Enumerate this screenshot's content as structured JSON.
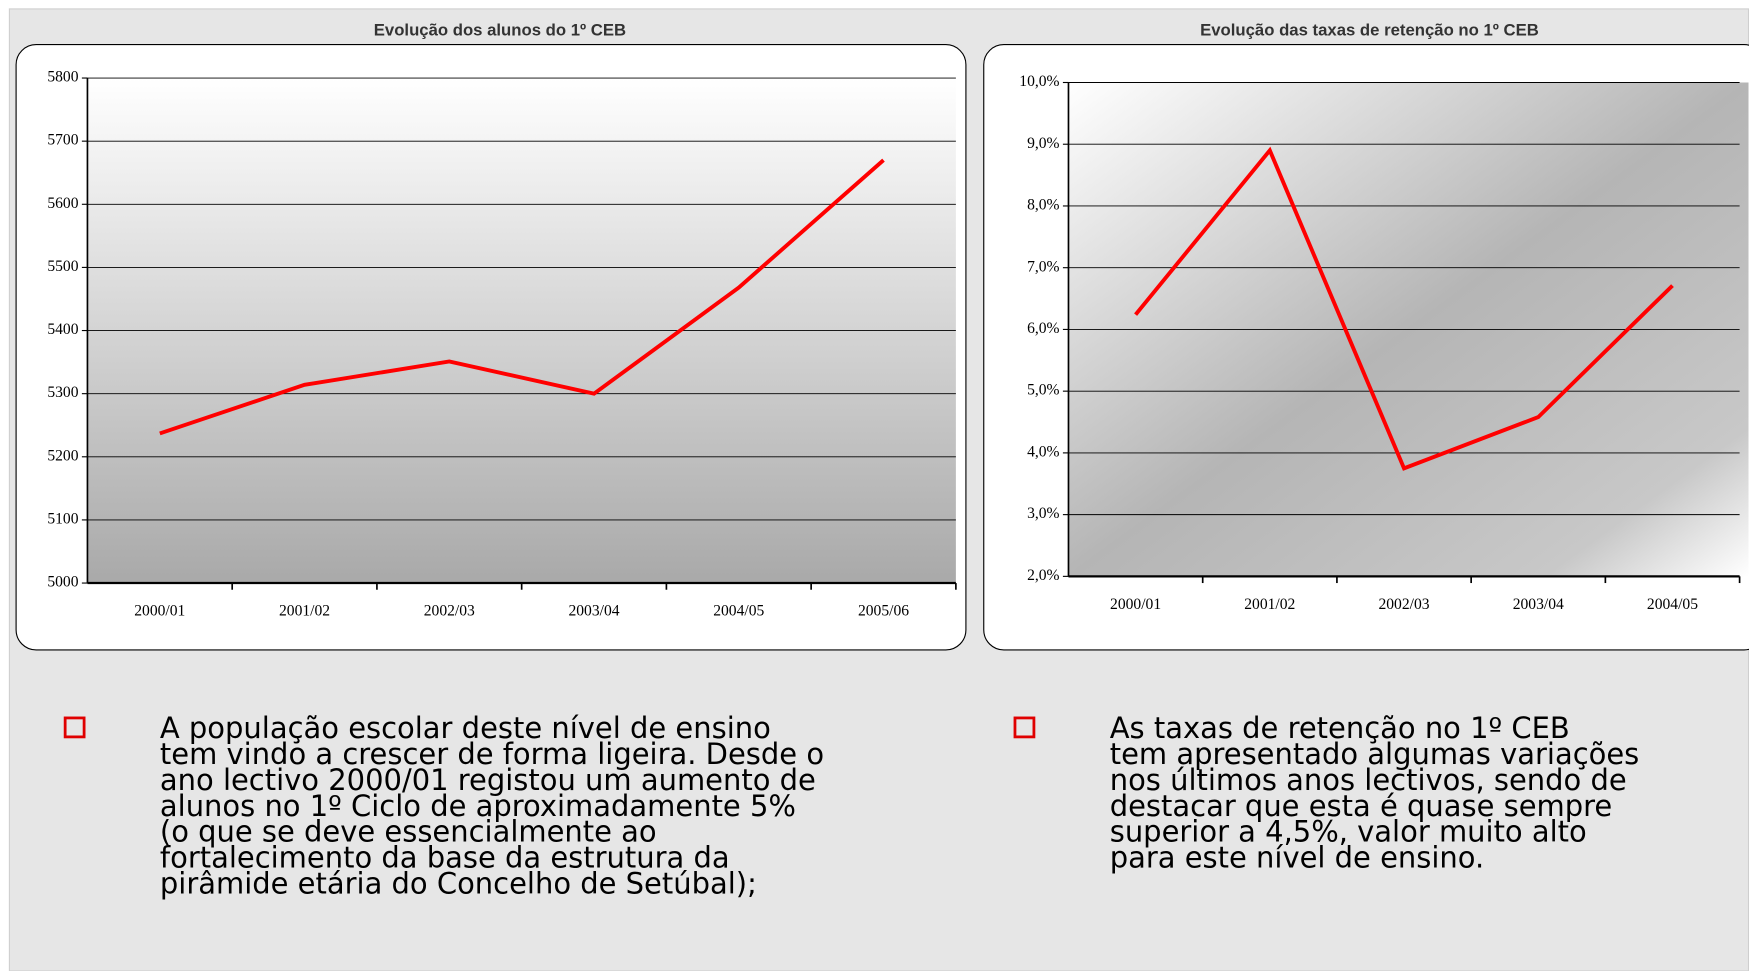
{
  "chart_data": [
    {
      "type": "line",
      "title": "Evolução dos alunos do 1º CEB",
      "categories": [
        "2000/01",
        "2001/02",
        "2002/03",
        "2003/04",
        "2004/05",
        "2005/06"
      ],
      "values": [
        5237,
        5314,
        5351,
        5300,
        5468,
        5670
      ],
      "color": "#ff0000",
      "ylim": [
        5000,
        5800
      ],
      "yticks": [
        5000,
        5100,
        5200,
        5300,
        5400,
        5500,
        5600,
        5700,
        5800
      ],
      "grid": true
    },
    {
      "type": "line",
      "title": "Evolução das taxas de retenção no 1º CEB",
      "categories": [
        "2000/01",
        "2001/02",
        "2002/03",
        "2003/04",
        "2004/05"
      ],
      "values": [
        6.24,
        8.9,
        3.75,
        4.58,
        6.71
      ],
      "color": "#ff0000",
      "ylim": [
        2,
        10
      ],
      "yticks": [
        {
          "value": 2,
          "label": "2,0%"
        },
        {
          "value": 3,
          "label": "3,0%"
        },
        {
          "value": 4,
          "label": "4,0%"
        },
        {
          "value": 5,
          "label": "5,0%"
        },
        {
          "value": 6,
          "label": "6,0%"
        },
        {
          "value": 7,
          "label": "7,0%"
        },
        {
          "value": 8,
          "label": "8,0%"
        },
        {
          "value": 9,
          "label": "9,0%"
        },
        {
          "value": 10,
          "label": "10,0%"
        }
      ],
      "grid": true
    }
  ],
  "bullets": [
    {
      "lines": [
        "A população escolar deste nível de ensino",
        "tem vindo a crescer de forma ligeira. Desde o",
        "ano lectivo 2000/01 registou um aumento de",
        "alunos no 1º Ciclo de aproximadamente 5%",
        "(o que se deve essencialmente ao",
        "fortalecimento da base da estrutura da",
        "pirâmide etária do Concelho de Setúbal);"
      ]
    },
    {
      "lines": [
        "As taxas de retenção no 1º CEB",
        "tem apresentado algumas variações",
        "nos últimos anos lectivos, sendo de",
        "destacar que esta é quase sempre",
        "superior a 4,5%, valor muito alto",
        "para este nível de ensino."
      ]
    }
  ]
}
